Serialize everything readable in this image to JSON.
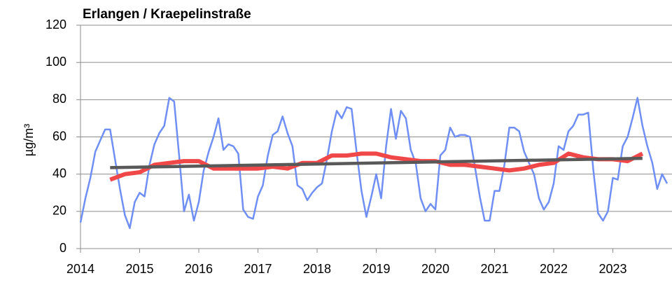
{
  "chart_data": {
    "type": "line",
    "title": "Erlangen / Kraepelinstraße",
    "y_label": "µg/m³",
    "xlim": [
      2014,
      2024
    ],
    "xticks": [
      2014,
      2015,
      2016,
      2017,
      2018,
      2019,
      2020,
      2021,
      2022,
      2023
    ],
    "ylim": [
      0,
      120
    ],
    "yticks": [
      0,
      20,
      40,
      60,
      80,
      100,
      120
    ],
    "grid": true,
    "series": [
      {
        "color": "#6f8ff5",
        "x": [
          2014,
          2014.083,
          2014.167,
          2014.25,
          2014.333,
          2014.417,
          2014.5,
          2014.583,
          2014.667,
          2014.75,
          2014.833,
          2014.917,
          2015,
          2015.083,
          2015.167,
          2015.25,
          2015.333,
          2015.417,
          2015.5,
          2015.583,
          2015.667,
          2015.75,
          2015.833,
          2015.917,
          2016,
          2016.083,
          2016.167,
          2016.25,
          2016.333,
          2016.417,
          2016.5,
          2016.583,
          2016.667,
          2016.75,
          2016.833,
          2016.917,
          2017,
          2017.083,
          2017.167,
          2017.25,
          2017.333,
          2017.417,
          2017.5,
          2017.583,
          2017.667,
          2017.75,
          2017.833,
          2017.917,
          2018,
          2018.083,
          2018.167,
          2018.25,
          2018.333,
          2018.417,
          2018.5,
          2018.583,
          2018.667,
          2018.75,
          2018.833,
          2018.917,
          2019,
          2019.083,
          2019.167,
          2019.25,
          2019.333,
          2019.417,
          2019.5,
          2019.583,
          2019.667,
          2019.75,
          2019.833,
          2019.917,
          2020,
          2020.083,
          2020.167,
          2020.25,
          2020.333,
          2020.417,
          2020.5,
          2020.583,
          2020.667,
          2020.75,
          2020.833,
          2020.917,
          2021,
          2021.083,
          2021.167,
          2021.25,
          2021.333,
          2021.417,
          2021.5,
          2021.583,
          2021.667,
          2021.75,
          2021.833,
          2021.917,
          2022,
          2022.083,
          2022.167,
          2022.25,
          2022.333,
          2022.417,
          2022.5,
          2022.583,
          2022.667,
          2022.75,
          2022.833,
          2022.917,
          2023,
          2023.083,
          2023.167,
          2023.25,
          2023.333,
          2023.417,
          2023.5,
          2023.583,
          2023.667,
          2023.75,
          2023.833,
          2023.917
        ],
        "values": [
          14,
          27,
          38,
          52,
          58,
          64,
          64,
          48,
          32,
          18,
          11,
          25,
          30,
          28,
          45,
          56,
          62,
          66,
          81,
          79,
          50,
          20,
          29,
          15,
          25,
          42,
          52,
          60,
          70,
          53,
          56,
          55,
          51,
          21,
          17,
          16,
          28,
          34,
          50,
          61,
          63,
          71,
          62,
          55,
          34,
          32,
          26,
          30,
          33,
          35,
          48,
          63,
          74,
          70,
          76,
          75,
          52,
          31,
          17,
          28,
          40,
          27,
          55,
          75,
          59,
          74,
          70,
          53,
          46,
          27,
          20,
          24,
          21,
          50,
          53,
          65,
          60,
          61,
          61,
          60,
          44,
          28,
          15,
          15,
          31,
          31,
          45,
          65,
          65,
          63,
          52,
          46,
          40,
          27,
          21,
          25,
          35,
          55,
          53,
          63,
          66,
          72,
          72,
          73,
          43,
          19,
          15,
          20,
          38,
          37,
          55,
          60,
          70,
          81,
          66,
          55,
          46,
          32,
          40,
          35
        ]
      },
      {
        "color": "#f04848",
        "x": [
          2014.5,
          2014.75,
          2015,
          2015.25,
          2015.5,
          2015.75,
          2016,
          2016.25,
          2016.5,
          2016.75,
          2017,
          2017.25,
          2017.5,
          2017.75,
          2018,
          2018.25,
          2018.5,
          2018.75,
          2019,
          2019.25,
          2019.5,
          2019.75,
          2020,
          2020.25,
          2020.5,
          2020.75,
          2021,
          2021.25,
          2021.5,
          2021.75,
          2022,
          2022.25,
          2022.5,
          2022.75,
          2023,
          2023.25,
          2023.5
        ],
        "values": [
          37,
          40,
          41,
          45,
          46,
          47,
          47,
          43,
          43,
          43,
          43,
          44,
          43,
          46,
          46,
          50,
          50,
          51,
          51,
          49,
          48,
          47,
          47,
          45,
          45,
          44,
          43,
          42,
          43,
          45,
          46,
          51,
          49,
          48,
          48,
          47,
          51
        ]
      },
      {
        "color": "#595959",
        "x": [
          2014.5,
          2023.5
        ],
        "values": [
          43.5,
          48.5
        ]
      }
    ]
  }
}
